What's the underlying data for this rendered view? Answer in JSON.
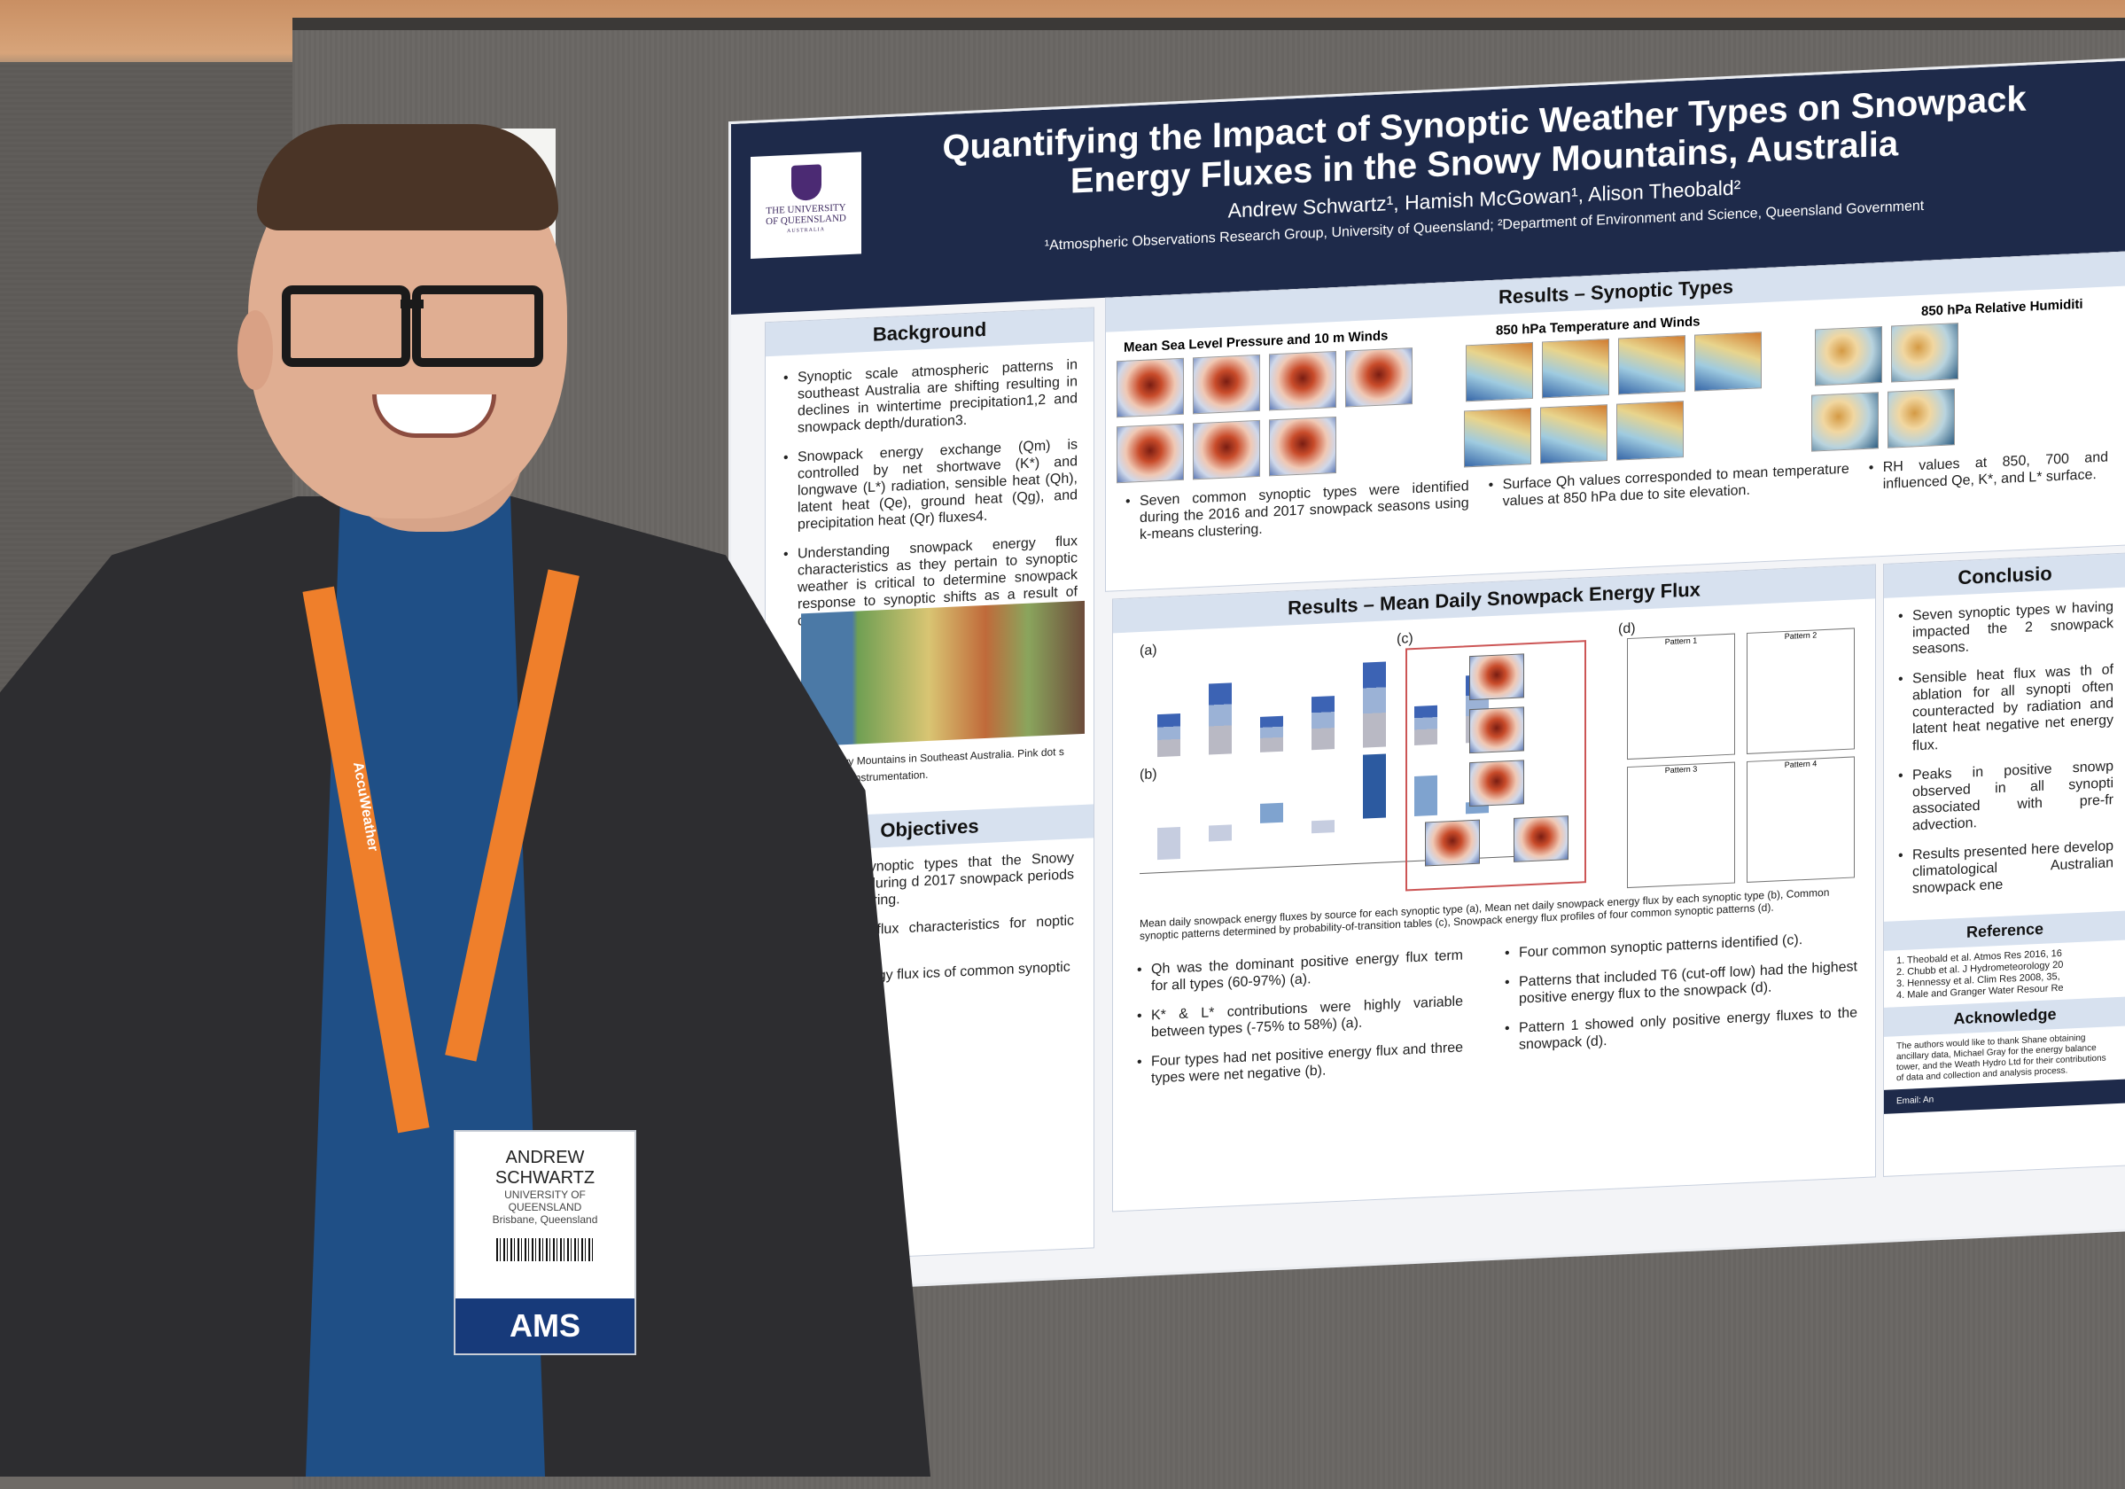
{
  "poster": {
    "title_line1": "Quantifying the Impact of Synoptic Weather Types on Snowpack",
    "title_line2": "Energy Fluxes in the Snowy Mountains, Australia",
    "authors": "Andrew Schwartz¹, Hamish McGowan¹, Alison Theobald²",
    "affiliations": "¹Atmospheric Observations Research Group, University of Queensland; ²Department of Environment and Science, Queensland Government",
    "logo": {
      "line1": "THE UNIVERSITY",
      "line2": "OF QUEENSLAND",
      "line3": "AUSTRALIA"
    },
    "background": {
      "heading": "Background",
      "bullets": [
        "Synoptic scale atmospheric patterns in southeast Australia are shifting resulting in declines in wintertime precipitation1,2 and snowpack depth/duration3.",
        "Snowpack energy exchange (Qm) is controlled by net shortwave (K*) and longwave (L*) radiation, sensible heat (Qh), latent heat (Qe), ground heat (Qg), and precipitation heat (Qr) fluxes4.",
        "Understanding snowpack energy flux characteristics as they pertain to synoptic weather is critical to determine snowpack response to synoptic shifts as a result of climate change."
      ],
      "map_caption": "n of Snowy Mountains in Southeast Australia. Pink dot s location of instrumentation."
    },
    "objectives": {
      "heading": "Objectives",
      "bullets": [
        "common synoptic types that the Snowy Mountains during d 2017 snowpack periods using clustering.",
        "he energy flux characteristics for noptic type.",
        "owpack energy flux ics of common synoptic"
      ]
    },
    "synoptic": {
      "heading": "Results – Synoptic Types",
      "panel1": "Mean Sea Level Pressure and 10 m Winds",
      "panel2": "850 hPa Temperature and Winds",
      "panel3": "850 hPa Relative Humiditi",
      "bullet1": "Seven common synoptic types were identified during the 2016 and 2017 snowpack seasons using k-means clustering.",
      "bullet2": "Surface Qh values corresponded to mean temperature values at 850 hPa due to site elevation.",
      "bullet3": "RH values at 850, 700 and influenced Qe, K*, and L* surface."
    },
    "energy": {
      "heading": "Results – Mean Daily Snowpack Energy Flux",
      "label_a": "(a)",
      "label_b": "(b)",
      "label_c": "(c)",
      "label_d": "(d)",
      "caption": "Mean daily snowpack energy fluxes by source for each synoptic type (a), Mean net daily snowpack energy flux by each synoptic type (b), Common synoptic patterns determined by probability-of-transition tables (c), Snowpack energy flux profiles of four common synoptic patterns (d).",
      "left_bullets": [
        "Qh was the dominant positive energy flux term for all types (60-97%) (a).",
        "K* & L* contributions were highly variable between types (-75% to 58%) (a).",
        "Four types had net positive energy flux and three types were net negative (b)."
      ],
      "right_bullets": [
        "Four common synoptic patterns identified (c).",
        "Patterns that included T6 (cut-off low) had the highest positive energy flux to the snowpack (d).",
        "Pattern 1 showed only positive energy fluxes to the snowpack (d)."
      ],
      "pattern_labels": [
        "Pattern 1",
        "Pattern 2",
        "Pattern 3",
        "Pattern 4"
      ]
    },
    "conclusions": {
      "heading": "Conclusio",
      "bullets": [
        "Seven synoptic types w having impacted the 2 snowpack seasons.",
        "Sensible heat flux was th of ablation for all synopti often counteracted by radiation and latent heat negative net energy flux.",
        "Peaks in positive snowp observed in all synopti associated with pre-fr advection.",
        "Results presented here develop climatological Australian snowpack ene"
      ],
      "references_heading": "Reference",
      "references": [
        "1. Theobald et al. Atmos Res 2016, 16",
        "2. Chubb et al. J Hydrometeorology 20",
        "3. Hennessy et al. Clim Res 2008, 35,",
        "4. Male and Granger Water Resour Re"
      ],
      "ack_heading": "Acknowledge",
      "ack_text": "The authors would like to thank Shane obtaining ancillary data, Michael Gray for the energy balance tower, and the Weath Hydro Ltd for their contributions of data and collection and analysis process.",
      "email": "Email: An"
    }
  },
  "badge": {
    "name_line1": "ANDREW",
    "name_line2": "SCHWARTZ",
    "org_line1": "UNIVERSITY OF",
    "org_line2": "QUEENSLAND",
    "org_line3": "Brisbane, Queensland",
    "footer": "AMS"
  },
  "lanyard_text": "AccuWeather",
  "colors": {
    "poster_header": "#1e2a4a",
    "section_head": "#d7e1ef",
    "lanyard": "#ef7f2b",
    "badge_footer": "#173a7a"
  },
  "energy_bars_a": [
    1.2,
    2.0,
    1.0,
    1.5,
    2.4,
    1.1,
    1.9
  ],
  "energy_bars_b": [
    -0.8,
    -0.4,
    0.5,
    -0.3,
    1.6,
    1.0,
    0.3
  ]
}
